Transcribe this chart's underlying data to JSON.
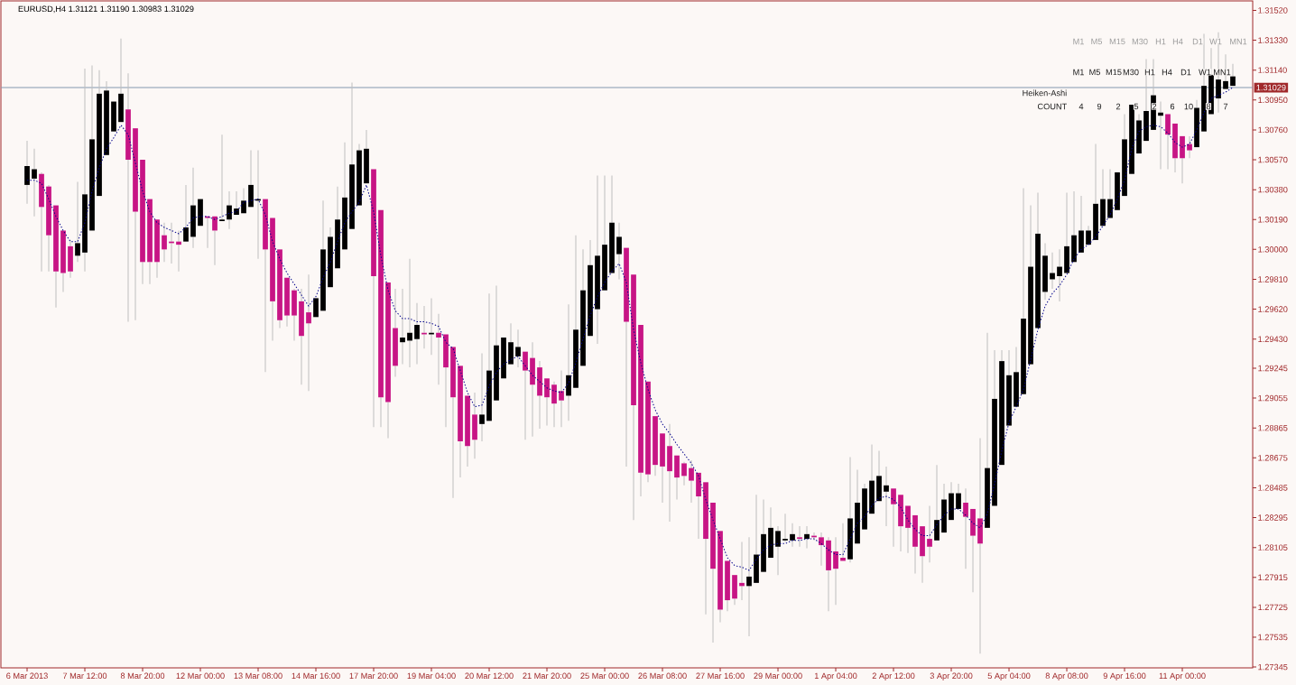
{
  "chart_data": {
    "type": "candlestick",
    "title": "EURUSD,H4 1.31121 1.31190 1.30983 1.31029",
    "categories": [
      "6 Mar 2013",
      null,
      null,
      null,
      null,
      null,
      null,
      null,
      "7 Mar 12:00",
      null,
      null,
      null,
      null,
      null,
      null,
      null,
      "8 Mar 20:00",
      null,
      null,
      null,
      null,
      null,
      null,
      null,
      "12 Mar 00:00",
      null,
      null,
      null,
      null,
      null,
      null,
      null,
      "13 Mar 08:00",
      null,
      null,
      null,
      null,
      null,
      null,
      null,
      "14 Mar 16:00",
      null,
      null,
      null,
      null,
      null,
      null,
      null,
      "17 Mar 20:00",
      null,
      null,
      null,
      null,
      null,
      null,
      null,
      "19 Mar 04:00",
      null,
      null,
      null,
      null,
      null,
      null,
      null,
      "20 Mar 12:00",
      null,
      null,
      null,
      null,
      null,
      null,
      null,
      "21 Mar 20:00",
      null,
      null,
      null,
      null,
      null,
      null,
      null,
      "25 Mar 00:00",
      null,
      null,
      null,
      null,
      null,
      null,
      null,
      "26 Mar 08:00",
      null,
      null,
      null,
      null,
      null,
      null,
      null,
      "27 Mar 16:00",
      null,
      null,
      null,
      null,
      null,
      null,
      null,
      "29 Mar 00:00",
      null,
      null,
      null,
      null,
      null,
      null,
      null,
      "1 Apr 04:00",
      null,
      null,
      null,
      null,
      null,
      null,
      null,
      "2 Apr 12:00",
      null,
      null,
      null,
      null,
      null,
      null,
      null,
      "3 Apr 20:00",
      null,
      null,
      null,
      null,
      null,
      null,
      null,
      "5 Apr 04:00",
      null,
      null,
      null,
      null,
      null,
      null,
      null,
      "8 Apr 08:00",
      null,
      null,
      null,
      null,
      null,
      null,
      null,
      "9 Apr 16:00",
      null,
      null,
      null,
      null,
      null,
      null,
      null,
      "11 Apr 00:00",
      null,
      null,
      null,
      null,
      null,
      null,
      null
    ],
    "ohlc": [
      [
        1.3041,
        1.3069,
        1.3029,
        1.3053
      ],
      [
        1.3045,
        1.3064,
        1.3021,
        1.3051
      ],
      [
        1.3048,
        1.3049,
        1.2986,
        1.3027
      ],
      [
        1.304,
        1.3041,
        1.2986,
        1.3009
      ],
      [
        1.3028,
        1.3028,
        1.2963,
        1.2986
      ],
      [
        1.3012,
        1.3012,
        1.2973,
        1.2985
      ],
      [
        1.3002,
        1.3006,
        1.2982,
        1.2986
      ],
      [
        1.2996,
        1.3043,
        1.2992,
        1.3004
      ],
      [
        1.2998,
        1.3115,
        1.2986,
        1.3035
      ],
      [
        1.3012,
        1.3117,
        1.3012,
        1.307
      ],
      [
        1.3034,
        1.3114,
        1.3034,
        1.3099
      ],
      [
        1.306,
        1.3107,
        1.306,
        1.3101
      ],
      [
        1.3075,
        1.3094,
        1.3075,
        1.3094
      ],
      [
        1.3081,
        1.3134,
        1.3081,
        1.3099
      ],
      [
        1.3089,
        1.3112,
        1.2954,
        1.3057
      ],
      [
        1.3077,
        1.3077,
        1.2955,
        1.3024
      ],
      [
        1.3057,
        1.3057,
        1.2978,
        1.2992
      ],
      [
        1.3032,
        1.3032,
        1.2978,
        1.2992
      ],
      [
        1.3019,
        1.3019,
        1.2982,
        1.2992
      ],
      [
        1.3009,
        1.3017,
        1.2992,
        1.3
      ],
      [
        1.3005,
        1.3017,
        1.2991,
        1.3004
      ],
      [
        1.3005,
        1.3012,
        1.2986,
        1.3003
      ],
      [
        1.3005,
        1.3041,
        1.3005,
        1.3014
      ],
      [
        1.3008,
        1.3052,
        1.3001,
        1.3028
      ],
      [
        1.3015,
        1.3032,
        1.3015,
        1.3032
      ],
      [
        1.3021,
        1.3021,
        1.3001,
        1.302
      ],
      [
        1.3021,
        1.3021,
        1.299,
        1.3012
      ],
      [
        1.3018,
        1.3073,
        1.3018,
        1.3019
      ],
      [
        1.3019,
        1.3037,
        1.3013,
        1.3028
      ],
      [
        1.3022,
        1.3037,
        1.3022,
        1.3026
      ],
      [
        1.3023,
        1.3039,
        1.3023,
        1.3031
      ],
      [
        1.3027,
        1.3063,
        1.3027,
        1.3041
      ],
      [
        1.3031,
        1.3063,
        1.2994,
        1.3032
      ],
      [
        1.3032,
        1.3032,
        1.2922,
        1.3
      ],
      [
        1.302,
        1.302,
        1.2942,
        1.2967
      ],
      [
        1.3,
        1.3,
        1.295,
        1.2955
      ],
      [
        1.2982,
        1.2982,
        1.2951,
        1.2958
      ],
      [
        1.2974,
        1.2975,
        1.2942,
        1.2958
      ],
      [
        1.2967,
        1.2975,
        1.2914,
        1.2945
      ],
      [
        1.296,
        1.2984,
        1.291,
        1.2953
      ],
      [
        1.2957,
        1.2969,
        1.2957,
        1.2969
      ],
      [
        1.2961,
        1.3031,
        1.2961,
        1.3
      ],
      [
        1.2976,
        1.3014,
        1.2976,
        1.3008
      ],
      [
        1.2988,
        1.304,
        1.2988,
        1.3019
      ],
      [
        1.3,
        1.3068,
        1.3,
        1.3033
      ],
      [
        1.3013,
        1.3106,
        1.3013,
        1.3054
      ],
      [
        1.3028,
        1.3067,
        1.3028,
        1.3063
      ],
      [
        1.3042,
        1.3076,
        1.3042,
        1.3064
      ],
      [
        1.3051,
        1.3051,
        1.2887,
        1.2983
      ],
      [
        1.3025,
        1.3025,
        1.2887,
        1.2906
      ],
      [
        1.2979,
        1.2979,
        1.288,
        1.2903
      ],
      [
        1.295,
        1.2975,
        1.2919,
        1.2926
      ],
      [
        1.2941,
        1.2975,
        1.2927,
        1.2944
      ],
      [
        1.2942,
        1.2994,
        1.2925,
        1.2947
      ],
      [
        1.2943,
        1.2966,
        1.2927,
        1.2952
      ],
      [
        1.2947,
        1.2964,
        1.2937,
        1.2946
      ],
      [
        1.2946,
        1.2969,
        1.2933,
        1.2947
      ],
      [
        1.2947,
        1.2959,
        1.2914,
        1.2944
      ],
      [
        1.2946,
        1.2946,
        1.2887,
        1.2925
      ],
      [
        1.2938,
        1.2938,
        1.2842,
        1.2906
      ],
      [
        1.2926,
        1.2926,
        1.2855,
        1.2878
      ],
      [
        1.2907,
        1.2907,
        1.2862,
        1.2875
      ],
      [
        1.2895,
        1.2909,
        1.2867,
        1.2879
      ],
      [
        1.2889,
        1.2934,
        1.2878,
        1.2895
      ],
      [
        1.2891,
        1.2972,
        1.2891,
        1.2923
      ],
      [
        1.2904,
        1.2977,
        1.2904,
        1.2939
      ],
      [
        1.2918,
        1.2944,
        1.2918,
        1.2944
      ],
      [
        1.2927,
        1.2953,
        1.2927,
        1.2941
      ],
      [
        1.2932,
        1.2949,
        1.2925,
        1.2938
      ],
      [
        1.2935,
        1.2935,
        1.2879,
        1.2923
      ],
      [
        1.2931,
        1.2941,
        1.2881,
        1.2914
      ],
      [
        1.2925,
        1.2929,
        1.2886,
        1.2907
      ],
      [
        1.2918,
        1.2918,
        1.2888,
        1.2906
      ],
      [
        1.2914,
        1.2916,
        1.2887,
        1.2902
      ],
      [
        1.291,
        1.2923,
        1.2887,
        1.2904
      ],
      [
        1.2907,
        1.2965,
        1.2891,
        1.292
      ],
      [
        1.2912,
        1.3009,
        1.2912,
        1.2949
      ],
      [
        1.2926,
        1.3,
        1.2926,
        1.2974
      ],
      [
        1.2945,
        1.3006,
        1.2945,
        1.299
      ],
      [
        1.2962,
        1.3047,
        1.294,
        1.2996
      ],
      [
        1.2974,
        1.3047,
        1.2974,
        1.3003
      ],
      [
        1.2985,
        1.3047,
        1.2985,
        1.3017
      ],
      [
        1.2997,
        1.3017,
        1.2981,
        1.3008
      ],
      [
        1.3001,
        1.3001,
        1.2862,
        1.2954
      ],
      [
        1.2984,
        1.2984,
        1.2828,
        1.2901
      ],
      [
        1.2952,
        1.2952,
        1.2843,
        1.2858
      ],
      [
        1.2916,
        1.2916,
        1.2852,
        1.2857
      ],
      [
        1.2894,
        1.2894,
        1.2856,
        1.2863
      ],
      [
        1.2883,
        1.2883,
        1.2839,
        1.2862
      ],
      [
        1.2875,
        1.2889,
        1.2827,
        1.2859
      ],
      [
        1.2869,
        1.2869,
        1.2841,
        1.2855
      ],
      [
        1.2864,
        1.2865,
        1.285,
        1.2856
      ],
      [
        1.2861,
        1.2866,
        1.2839,
        1.2853
      ],
      [
        1.2858,
        1.2858,
        1.2816,
        1.2843
      ],
      [
        1.2852,
        1.2852,
        1.2768,
        1.2816
      ],
      [
        1.2839,
        1.2839,
        1.275,
        1.2797
      ],
      [
        1.2821,
        1.2821,
        1.2763,
        1.2771
      ],
      [
        1.2802,
        1.2802,
        1.277,
        1.2777
      ],
      [
        1.2793,
        1.2793,
        1.2774,
        1.2778
      ],
      [
        1.2788,
        1.2814,
        1.2777,
        1.2786
      ],
      [
        1.2786,
        1.2817,
        1.2754,
        1.2792
      ],
      [
        1.2788,
        1.2844,
        1.2788,
        1.2806
      ],
      [
        1.2795,
        1.2841,
        1.2795,
        1.2819
      ],
      [
        1.2804,
        1.2836,
        1.2804,
        1.2823
      ],
      [
        1.2811,
        1.2824,
        1.2793,
        1.2821
      ],
      [
        1.2815,
        1.2832,
        1.2814,
        1.2816
      ],
      [
        1.2815,
        1.2826,
        1.2811,
        1.2819
      ],
      [
        1.2817,
        1.2824,
        1.2811,
        1.2816
      ],
      [
        1.2816,
        1.2824,
        1.281,
        1.2819
      ],
      [
        1.2818,
        1.282,
        1.2815,
        1.2817
      ],
      [
        1.2817,
        1.282,
        1.2799,
        1.2812
      ],
      [
        1.2815,
        1.2817,
        1.277,
        1.2796
      ],
      [
        1.2808,
        1.2817,
        1.2774,
        1.2797
      ],
      [
        1.2804,
        1.2826,
        1.2802,
        1.2802
      ],
      [
        1.2803,
        1.2868,
        1.2801,
        1.2829
      ],
      [
        1.2813,
        1.286,
        1.2813,
        1.2839
      ],
      [
        1.2822,
        1.2851,
        1.2822,
        1.2848
      ],
      [
        1.2832,
        1.2876,
        1.2832,
        1.2853
      ],
      [
        1.284,
        1.2872,
        1.284,
        1.2856
      ],
      [
        1.2846,
        1.2862,
        1.2824,
        1.285
      ],
      [
        1.2848,
        1.2848,
        1.2811,
        1.2838
      ],
      [
        1.2844,
        1.2844,
        1.2808,
        1.2824
      ],
      [
        1.2837,
        1.2837,
        1.2807,
        1.2823
      ],
      [
        1.2831,
        1.2831,
        1.2794,
        1.2811
      ],
      [
        1.2824,
        1.2824,
        1.2788,
        1.2805
      ],
      [
        1.2816,
        1.2837,
        1.2801,
        1.2811
      ],
      [
        1.2815,
        1.2863,
        1.2815,
        1.2828
      ],
      [
        1.282,
        1.2851,
        1.282,
        1.2841
      ],
      [
        1.2828,
        1.2852,
        1.2828,
        1.2845
      ],
      [
        1.2835,
        1.2851,
        1.2835,
        1.2845
      ],
      [
        1.2839,
        1.2848,
        1.2797,
        1.283
      ],
      [
        1.2835,
        1.2835,
        1.2782,
        1.2818
      ],
      [
        1.2829,
        1.288,
        1.2743,
        1.2813
      ],
      [
        1.2823,
        1.2947,
        1.2823,
        1.2861
      ],
      [
        1.2837,
        1.2936,
        1.2837,
        1.2905
      ],
      [
        1.2863,
        1.2936,
        1.2863,
        1.2929
      ],
      [
        1.2888,
        1.2936,
        1.2888,
        1.292
      ],
      [
        1.29,
        1.2938,
        1.29,
        1.2922
      ],
      [
        1.2908,
        1.3039,
        1.2908,
        1.2956
      ],
      [
        1.2927,
        1.3028,
        1.2927,
        1.2989
      ],
      [
        1.295,
        1.3036,
        1.295,
        1.301
      ],
      [
        1.2973,
        1.3004,
        1.2968,
        1.2996
      ],
      [
        1.2981,
        1.2998,
        1.2975,
        1.2985
      ],
      [
        1.2983,
        1.3,
        1.2967,
        1.2989
      ],
      [
        1.2985,
        1.3036,
        1.2985,
        1.3002
      ],
      [
        1.2992,
        1.3037,
        1.2992,
        1.3009
      ],
      [
        1.2998,
        1.3034,
        1.2998,
        1.3012
      ],
      [
        1.3003,
        1.3015,
        1.3003,
        1.3012
      ],
      [
        1.3006,
        1.3067,
        1.3006,
        1.3029
      ],
      [
        1.3015,
        1.3051,
        1.3015,
        1.3032
      ],
      [
        1.302,
        1.3051,
        1.302,
        1.3032
      ],
      [
        1.3025,
        1.3049,
        1.3025,
        1.3049
      ],
      [
        1.3034,
        1.3086,
        1.3034,
        1.307
      ],
      [
        1.3048,
        1.3092,
        1.3048,
        1.3092
      ],
      [
        1.3061,
        1.3086,
        1.3061,
        1.3082
      ],
      [
        1.3069,
        1.3121,
        1.3069,
        1.3088
      ],
      [
        1.3076,
        1.3121,
        1.3076,
        1.3098
      ],
      [
        1.3085,
        1.3094,
        1.3051,
        1.3087
      ],
      [
        1.3086,
        1.3086,
        1.3051,
        1.3073
      ],
      [
        1.308,
        1.308,
        1.3049,
        1.3058
      ],
      [
        1.3072,
        1.3072,
        1.3042,
        1.3058
      ],
      [
        1.3067,
        1.3072,
        1.3058,
        1.3063
      ],
      [
        1.3065,
        1.3095,
        1.3065,
        1.309
      ],
      [
        1.3075,
        1.3137,
        1.3075,
        1.3104
      ],
      [
        1.3086,
        1.3128,
        1.3086,
        1.3111
      ],
      [
        1.3096,
        1.3138,
        1.3087,
        1.3108
      ],
      [
        1.3102,
        1.3124,
        1.3102,
        1.3107
      ],
      [
        1.3104,
        1.3118,
        1.3104,
        1.311
      ]
    ],
    "colors": [
      "#000000",
      "#000000",
      "#c71585",
      "#c71585",
      "#c71585",
      "#c71585",
      "#c71585",
      "#000000",
      "#000000",
      "#000000",
      "#000000",
      "#000000",
      "#000000",
      "#000000",
      "#c71585",
      "#c71585",
      "#c71585",
      "#c71585",
      "#c71585",
      "#c71585",
      "#c71585",
      "#c71585",
      "#000000",
      "#000000",
      "#000000",
      "#c71585",
      "#c71585",
      "#000000",
      "#000000",
      "#000000",
      "#000000",
      "#000000",
      "#000000",
      "#c71585",
      "#c71585",
      "#c71585",
      "#c71585",
      "#c71585",
      "#c71585",
      "#c71585",
      "#000000",
      "#000000",
      "#000000",
      "#000000",
      "#000000",
      "#000000",
      "#000000",
      "#000000",
      "#c71585",
      "#c71585",
      "#c71585",
      "#c71585",
      "#000000",
      "#000000",
      "#000000",
      "#c71585",
      "#000000",
      "#c71585",
      "#c71585",
      "#c71585",
      "#c71585",
      "#c71585",
      "#c71585",
      "#000000",
      "#000000",
      "#000000",
      "#000000",
      "#000000",
      "#000000",
      "#c71585",
      "#c71585",
      "#c71585",
      "#c71585",
      "#c71585",
      "#c71585",
      "#000000",
      "#000000",
      "#000000",
      "#000000",
      "#000000",
      "#000000",
      "#000000",
      "#000000",
      "#c71585",
      "#c71585",
      "#c71585",
      "#c71585",
      "#c71585",
      "#c71585",
      "#c71585",
      "#c71585",
      "#c71585",
      "#c71585",
      "#c71585",
      "#c71585",
      "#c71585",
      "#c71585",
      "#c71585",
      "#c71585",
      "#c71585",
      "#000000",
      "#000000",
      "#000000",
      "#000000",
      "#000000",
      "#000000",
      "#000000",
      "#c71585",
      "#000000",
      "#c71585",
      "#c71585",
      "#c71585",
      "#c71585",
      "#c71585",
      "#000000",
      "#000000",
      "#000000",
      "#000000",
      "#000000",
      "#000000",
      "#c71585",
      "#c71585",
      "#c71585",
      "#c71585",
      "#c71585",
      "#c71585",
      "#000000",
      "#000000",
      "#000000",
      "#000000",
      "#c71585",
      "#c71585",
      "#c71585",
      "#000000",
      "#000000",
      "#000000",
      "#000000",
      "#000000",
      "#000000",
      "#000000",
      "#000000",
      "#000000",
      "#000000",
      "#000000",
      "#000000",
      "#000000",
      "#000000",
      "#000000",
      "#000000",
      "#000000",
      "#000000",
      "#000000",
      "#000000",
      "#000000",
      "#000000",
      "#000000",
      "#000000",
      "#000000",
      "#c71585",
      "#c71585",
      "#c71585",
      "#c71585",
      "#000000",
      "#000000",
      "#000000",
      "#000000",
      "#000000",
      "#000000"
    ],
    "series": [
      {
        "type": "line",
        "color": "#00008b",
        "line_style": "dotted",
        "values": [
          1.3044,
          1.3044,
          1.3042,
          1.3032,
          1.3021,
          1.3012,
          1.3005,
          1.3005,
          1.3017,
          1.3037,
          1.3052,
          1.3064,
          1.3071,
          1.3079,
          1.3073,
          1.3055,
          1.3037,
          1.3024,
          1.3017,
          1.3014,
          1.3012,
          1.301,
          1.3014,
          1.302,
          1.3021,
          1.3021,
          1.3019,
          1.3021,
          1.3023,
          1.3024,
          1.303,
          1.3031,
          1.3032,
          1.3022,
          1.3005,
          1.2994,
          1.2985,
          1.2978,
          1.2971,
          1.2964,
          1.297,
          1.2982,
          1.2992,
          1.3005,
          1.3017,
          1.3024,
          1.303,
          1.3041,
          1.3024,
          1.2996,
          1.2974,
          1.2961,
          1.2956,
          1.2956,
          1.2954,
          1.2954,
          1.2953,
          1.2951,
          1.2941,
          1.2937,
          1.2923,
          1.2909,
          1.29,
          1.2901,
          1.2913,
          1.2922,
          1.2927,
          1.293,
          1.2932,
          1.2926,
          1.292,
          1.2916,
          1.2912,
          1.291,
          1.2909,
          1.2915,
          1.2928,
          1.2943,
          1.2958,
          1.297,
          1.2979,
          1.2986,
          1.2991,
          1.2979,
          1.2949,
          1.2928,
          1.2911,
          1.2898,
          1.2889,
          1.2883,
          1.2876,
          1.287,
          1.2864,
          1.2856,
          1.2841,
          1.2828,
          1.2816,
          1.2804,
          1.2799,
          1.2798,
          1.2796,
          1.2803,
          1.2809,
          1.2812,
          1.2813,
          1.2813,
          1.2815,
          1.2815,
          1.2816,
          1.2816,
          1.2813,
          1.2809,
          1.2806,
          1.2806,
          1.2816,
          1.2826,
          1.283,
          1.2837,
          1.2842,
          1.2843,
          1.2841,
          1.2836,
          1.2828,
          1.2822,
          1.2818,
          1.2818,
          1.2825,
          1.2831,
          1.2835,
          1.2835,
          1.2831,
          1.2826,
          1.2823,
          1.2832,
          1.2851,
          1.2872,
          1.289,
          1.29,
          1.2911,
          1.293,
          1.2949,
          1.2964,
          1.2972,
          1.2977,
          1.2984,
          1.2994,
          1.3,
          1.3003,
          1.3008,
          1.3015,
          1.3022,
          1.3032,
          1.3044,
          1.3064,
          1.3075,
          1.3078,
          1.3079,
          1.3078,
          1.3074,
          1.3068,
          1.3065,
          1.3067,
          1.3076,
          1.3087,
          1.3096,
          1.3098,
          1.31,
          1.3103
        ]
      }
    ],
    "ylim": [
      1.2734,
      1.3158
    ],
    "yticks": [
      {
        "value": 1.3152,
        "label": "1.31520"
      },
      {
        "value": 1.3133,
        "label": "1.31330"
      },
      {
        "value": 1.3114,
        "label": "1.31140"
      },
      {
        "value": 1.3095,
        "label": "1.30950"
      },
      {
        "value": 1.3076,
        "label": "1.30760"
      },
      {
        "value": 1.3057,
        "label": "1.30570"
      },
      {
        "value": 1.3038,
        "label": "1.30380"
      },
      {
        "value": 1.3019,
        "label": "1.30190"
      },
      {
        "value": 1.3,
        "label": "1.30000"
      },
      {
        "value": 1.2981,
        "label": "1.29810"
      },
      {
        "value": 1.2962,
        "label": "1.29620"
      },
      {
        "value": 1.2943,
        "label": "1.29430"
      },
      1.29245,
      1.29055,
      1.28865,
      1.28675,
      1.28485,
      1.28295,
      1.28105,
      1.27915,
      1.27725,
      1.27535,
      1.27345
    ],
    "ref_lines": [
      {
        "axis": "y",
        "value": 1.31029,
        "label": "1.31029",
        "color": "#8497b0"
      }
    ],
    "annotations": [
      "M1",
      "M5",
      "M15",
      "M30",
      "H1",
      "H4",
      "D1",
      "W1",
      "MN1",
      "M1",
      "M5",
      "M15",
      "M30",
      "H1",
      "H4",
      "D1",
      "W1",
      "MN1",
      "Heiken-Ashi",
      "COUNT",
      "4",
      "9",
      "2",
      "5",
      "2",
      "6",
      "10",
      "8",
      "7"
    ]
  }
}
